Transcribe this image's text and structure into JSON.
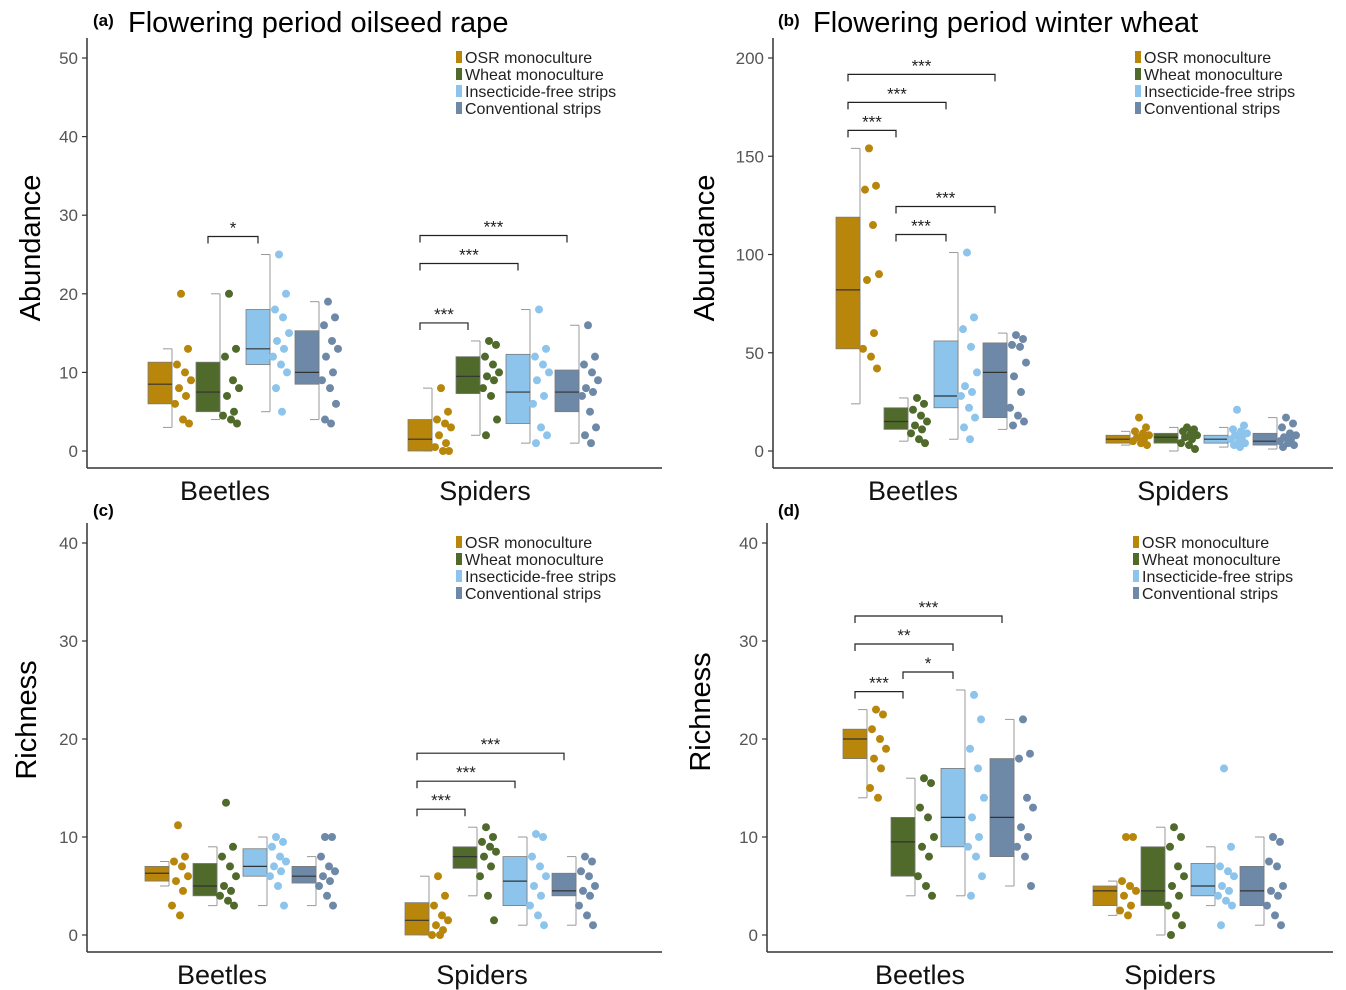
{
  "colors": {
    "osr": "#b8860b",
    "wheat": "#4f6a2a",
    "insecticide_free": "#8cc4ec",
    "conventional": "#6e89a8",
    "axis": "#333333",
    "tick_label": "#555555"
  },
  "chart_data": [
    {
      "type": "box",
      "panel": "(a)",
      "title": "Flowering period oilseed rape",
      "ylabel": "Abundance",
      "xlabel": "",
      "ylim": [
        0,
        50
      ],
      "yticks": [
        0,
        10,
        20,
        30,
        40,
        50
      ],
      "grid": false,
      "legend_position": "top-right",
      "categories": [
        "Beetles",
        "Spiders"
      ],
      "series": [
        {
          "name": "OSR monoculture",
          "color_key": "osr",
          "boxes": [
            {
              "min": 3,
              "q1": 6,
              "median": 8.5,
              "q3": 11.3,
              "max": 13,
              "points": [
                20,
                13,
                11,
                10,
                9,
                8,
                7,
                6,
                4,
                3.5
              ]
            },
            {
              "min": 0,
              "q1": 0,
              "median": 1.5,
              "q3": 4,
              "max": 8,
              "points": [
                8,
                5,
                4,
                3.5,
                3,
                2,
                1,
                0.5,
                0,
                0
              ]
            }
          ]
        },
        {
          "name": "Wheat monoculture",
          "color_key": "wheat",
          "boxes": [
            {
              "min": 4,
              "q1": 5,
              "median": 7.5,
              "q3": 11.3,
              "max": 20,
              "points": [
                20,
                13,
                12,
                9,
                8,
                7,
                5,
                4.5,
                4,
                3.5
              ]
            },
            {
              "min": 2,
              "q1": 7.3,
              "median": 9.5,
              "q3": 12,
              "max": 14,
              "points": [
                14,
                13.5,
                12,
                11,
                10,
                9.5,
                9,
                8,
                7,
                4,
                2
              ]
            }
          ]
        },
        {
          "name": "Insecticide-free strips",
          "color_key": "insecticide_free",
          "boxes": [
            {
              "min": 5,
              "q1": 11,
              "median": 13,
              "q3": 18,
              "max": 25,
              "points": [
                25,
                20,
                18,
                17,
                15,
                14,
                13,
                12,
                11,
                10,
                8,
                5
              ]
            },
            {
              "min": 1,
              "q1": 3.5,
              "median": 7.5,
              "q3": 12.3,
              "max": 18,
              "points": [
                18,
                13,
                12,
                11,
                10,
                9,
                7,
                6,
                3,
                2,
                1
              ]
            }
          ]
        },
        {
          "name": "Conventional strips",
          "color_key": "conventional",
          "boxes": [
            {
              "min": 4,
              "q1": 8.5,
              "median": 10,
              "q3": 15.3,
              "max": 19,
              "points": [
                19,
                17,
                16,
                14,
                13,
                12,
                10,
                9,
                8,
                6,
                4,
                3.5
              ]
            },
            {
              "min": 1,
              "q1": 5,
              "median": 7.5,
              "q3": 10.3,
              "max": 16,
              "points": [
                16,
                12,
                11,
                10,
                9,
                8,
                7.5,
                7,
                5,
                3,
                2,
                1
              ]
            }
          ]
        }
      ],
      "brackets": [
        {
          "category": 0,
          "from": 1,
          "to": 2,
          "label": "*"
        },
        {
          "category": 1,
          "from": 0,
          "to": 1,
          "label": "***"
        },
        {
          "category": 1,
          "from": 0,
          "to": 2,
          "label": "***"
        },
        {
          "category": 1,
          "from": 0,
          "to": 3,
          "label": "***"
        }
      ]
    },
    {
      "type": "box",
      "panel": "(b)",
      "title": "Flowering period winter wheat",
      "ylabel": "Abundance",
      "xlabel": "",
      "ylim": [
        0,
        200
      ],
      "yticks": [
        0,
        50,
        100,
        150,
        200
      ],
      "grid": false,
      "legend_position": "top-right",
      "categories": [
        "Beetles",
        "Spiders"
      ],
      "series": [
        {
          "name": "OSR monoculture",
          "color_key": "osr",
          "boxes": [
            {
              "min": 24,
              "q1": 52,
              "median": 82,
              "q3": 119,
              "max": 154,
              "points": [
                154,
                135,
                133,
                115,
                90,
                87,
                60,
                52,
                48,
                42
              ]
            },
            {
              "min": 3,
              "q1": 4,
              "median": 6,
              "q3": 8,
              "max": 10,
              "points": [
                17,
                12,
                10,
                9,
                8,
                7,
                6,
                5,
                4,
                3
              ]
            }
          ]
        },
        {
          "name": "Wheat monoculture",
          "color_key": "wheat",
          "boxes": [
            {
              "min": 5,
              "q1": 11,
              "median": 15,
              "q3": 22,
              "max": 27,
              "points": [
                27,
                24,
                21,
                18,
                15,
                13,
                11,
                9,
                6,
                4
              ]
            },
            {
              "min": 0,
              "q1": 4,
              "median": 7,
              "q3": 9,
              "max": 12,
              "points": [
                12,
                11,
                10,
                9,
                8,
                7,
                6,
                4,
                3,
                1
              ]
            }
          ]
        },
        {
          "name": "Insecticide-free strips",
          "color_key": "insecticide_free",
          "boxes": [
            {
              "min": 6,
              "q1": 22,
              "median": 28,
              "q3": 56,
              "max": 101,
              "points": [
                101,
                68,
                62,
                53,
                40,
                33,
                30,
                28,
                22,
                17,
                12,
                6
              ]
            },
            {
              "min": 2,
              "q1": 4,
              "median": 6,
              "q3": 8,
              "max": 12,
              "points": [
                21,
                13,
                11,
                10,
                9,
                8,
                7,
                6,
                5,
                4,
                3,
                2
              ]
            }
          ]
        },
        {
          "name": "Conventional strips",
          "color_key": "conventional",
          "boxes": [
            {
              "min": 11,
              "q1": 17,
              "median": 40,
              "q3": 55,
              "max": 60,
              "points": [
                59,
                57,
                54,
                53,
                45,
                38,
                30,
                22,
                18,
                15,
                13
              ]
            },
            {
              "min": 1,
              "q1": 3,
              "median": 5,
              "q3": 9,
              "max": 17,
              "points": [
                17,
                14,
                12,
                9,
                8,
                7,
                6,
                5,
                4,
                3,
                2
              ]
            }
          ]
        }
      ],
      "brackets": [
        {
          "category": 0,
          "from": 0,
          "to": 1,
          "label": "***"
        },
        {
          "category": 0,
          "from": 0,
          "to": 2,
          "label": "***"
        },
        {
          "category": 0,
          "from": 0,
          "to": 3,
          "label": "***"
        },
        {
          "category": 0,
          "from": 1,
          "to": 2,
          "label": "***"
        },
        {
          "category": 0,
          "from": 1,
          "to": 3,
          "label": "***"
        }
      ]
    },
    {
      "type": "box",
      "panel": "(c)",
      "title": "",
      "ylabel": "Richness",
      "xlabel": "",
      "ylim": [
        0,
        40
      ],
      "yticks": [
        0,
        10,
        20,
        30,
        40
      ],
      "grid": false,
      "legend_position": "top-right",
      "categories": [
        "Beetles",
        "Spiders"
      ],
      "series": [
        {
          "name": "OSR monoculture",
          "color_key": "osr",
          "boxes": [
            {
              "min": 5,
              "q1": 5.5,
              "median": 6.3,
              "q3": 7,
              "max": 7.5,
              "points": [
                11.2,
                8,
                7.5,
                7,
                6,
                5.5,
                4.5,
                3,
                2
              ]
            },
            {
              "min": 0,
              "q1": 0,
              "median": 1.5,
              "q3": 3.3,
              "max": 6,
              "points": [
                6,
                4,
                3,
                2,
                1.5,
                1,
                0.5,
                0,
                0
              ]
            }
          ]
        },
        {
          "name": "Wheat monoculture",
          "color_key": "wheat",
          "boxes": [
            {
              "min": 3,
              "q1": 4,
              "median": 5,
              "q3": 7.3,
              "max": 9,
              "points": [
                13.5,
                9,
                8,
                7,
                6,
                5,
                4.5,
                4,
                3.5,
                3
              ]
            },
            {
              "min": 4,
              "q1": 6.8,
              "median": 8,
              "q3": 9,
              "max": 11,
              "points": [
                11,
                10,
                9.5,
                9,
                8.5,
                8,
                7,
                6,
                4,
                1.5
              ]
            }
          ]
        },
        {
          "name": "Insecticide-free strips",
          "color_key": "insecticide_free",
          "boxes": [
            {
              "min": 3,
              "q1": 6,
              "median": 7,
              "q3": 8.8,
              "max": 10,
              "points": [
                10,
                9.5,
                9,
                8,
                7.5,
                7,
                6.5,
                6,
                5,
                3
              ]
            },
            {
              "min": 1,
              "q1": 3,
              "median": 5.5,
              "q3": 8,
              "max": 10,
              "points": [
                10.3,
                10,
                8,
                7,
                6,
                5,
                4,
                3,
                2,
                1
              ]
            }
          ]
        },
        {
          "name": "Conventional strips",
          "color_key": "conventional",
          "boxes": [
            {
              "min": 3,
              "q1": 5.3,
              "median": 6,
              "q3": 7,
              "max": 8,
              "points": [
                10,
                10,
                8,
                7,
                6.5,
                6,
                5.5,
                5,
                4,
                3
              ]
            },
            {
              "min": 1,
              "q1": 4,
              "median": 4.5,
              "q3": 6.3,
              "max": 8,
              "points": [
                8,
                7.5,
                6.5,
                6,
                5,
                4.5,
                4,
                3,
                2,
                1
              ]
            }
          ]
        }
      ],
      "brackets": [
        {
          "category": 1,
          "from": 0,
          "to": 1,
          "label": "***"
        },
        {
          "category": 1,
          "from": 0,
          "to": 2,
          "label": "***"
        },
        {
          "category": 1,
          "from": 0,
          "to": 3,
          "label": "***"
        }
      ]
    },
    {
      "type": "box",
      "panel": "(d)",
      "title": "",
      "ylabel": "Richness",
      "xlabel": "",
      "ylim": [
        0,
        40
      ],
      "yticks": [
        0,
        10,
        20,
        30,
        40
      ],
      "grid": false,
      "legend_position": "top-right",
      "categories": [
        "Beetles",
        "Spiders"
      ],
      "series": [
        {
          "name": "OSR monoculture",
          "color_key": "osr",
          "boxes": [
            {
              "min": 14,
              "q1": 18,
              "median": 20,
              "q3": 21,
              "max": 23,
              "points": [
                23,
                22.5,
                21,
                20,
                19,
                18,
                17,
                15,
                14
              ]
            },
            {
              "min": 2,
              "q1": 3,
              "median": 4.5,
              "q3": 5,
              "max": 5.5,
              "points": [
                10,
                10,
                5.5,
                5,
                4.5,
                4,
                3,
                2.5,
                2
              ]
            }
          ]
        },
        {
          "name": "Wheat monoculture",
          "color_key": "wheat",
          "boxes": [
            {
              "min": 4,
              "q1": 6,
              "median": 9.5,
              "q3": 12,
              "max": 16,
              "points": [
                16,
                15.5,
                13,
                12,
                10,
                9,
                8,
                6,
                5,
                4
              ]
            },
            {
              "min": 0,
              "q1": 3,
              "median": 4.5,
              "q3": 9,
              "max": 11,
              "points": [
                11,
                10,
                9,
                7,
                6,
                5,
                4,
                3,
                2,
                1,
                0
              ]
            }
          ]
        },
        {
          "name": "Insecticide-free strips",
          "color_key": "insecticide_free",
          "boxes": [
            {
              "min": 4,
              "q1": 9,
              "median": 12,
              "q3": 17,
              "max": 25,
              "points": [
                24.5,
                22,
                19,
                17,
                14,
                12,
                10,
                9,
                8,
                6,
                4
              ]
            },
            {
              "min": 3,
              "q1": 4,
              "median": 5,
              "q3": 7.3,
              "max": 9,
              "points": [
                17,
                9,
                7,
                6.5,
                6,
                5,
                4.5,
                4,
                3.5,
                3,
                1
              ]
            }
          ]
        },
        {
          "name": "Conventional strips",
          "color_key": "conventional",
          "boxes": [
            {
              "min": 5,
              "q1": 8,
              "median": 12,
              "q3": 18,
              "max": 22,
              "points": [
                22,
                18.5,
                18,
                14,
                13,
                11,
                10,
                9,
                8,
                5
              ]
            },
            {
              "min": 1,
              "q1": 3,
              "median": 4.5,
              "q3": 7,
              "max": 10,
              "points": [
                10,
                9.5,
                7.5,
                7,
                5,
                4.5,
                4,
                3,
                2,
                1
              ]
            }
          ]
        }
      ],
      "brackets": [
        {
          "category": 0,
          "from": 0,
          "to": 1,
          "label": "***"
        },
        {
          "category": 0,
          "from": 0,
          "to": 2,
          "label": "**"
        },
        {
          "category": 0,
          "from": 0,
          "to": 3,
          "label": "***"
        },
        {
          "category": 0,
          "from": 1,
          "to": 2,
          "label": "*"
        }
      ]
    }
  ]
}
